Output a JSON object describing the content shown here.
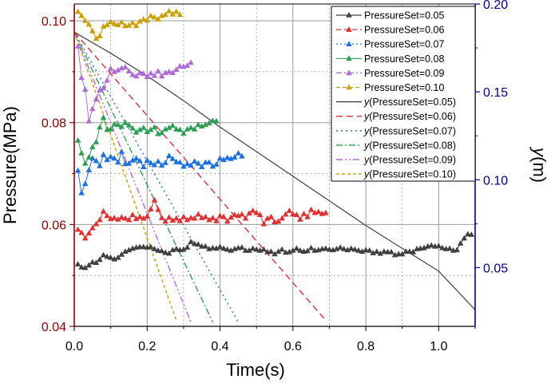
{
  "chart_data": {
    "type": "line",
    "xlabel": "Time(s)",
    "ylabel_left": "Pressure(MPa)",
    "ylabel_right_italic": "y",
    "ylabel_right_unit": "(m)",
    "xlim": [
      0,
      1.1
    ],
    "ylim_left": [
      0.04,
      0.1033
    ],
    "ylim_right": [
      0.0166,
      0.2
    ],
    "x_ticks": [
      "0.0",
      "0.2",
      "0.4",
      "0.6",
      "0.8",
      "1.0"
    ],
    "y_left_ticks": [
      "0.04",
      "0.06",
      "0.08",
      "0.10"
    ],
    "y_right_ticks": [
      "0.05",
      "0.10",
      "0.15",
      "0.20"
    ],
    "grid": true,
    "legend_position": "top-right",
    "colors": {
      "left_axis": "#8b0000",
      "right_axis": "#00008b",
      "grid": "#999999"
    },
    "pressure_series": [
      {
        "name": "PressureSet=0.05",
        "color": "#404040",
        "marker": "triangle",
        "x": [
          0.01,
          0.02,
          0.03,
          0.04,
          0.05,
          0.06,
          0.07,
          0.08,
          0.09,
          0.1,
          0.11,
          0.12,
          0.13,
          0.14,
          0.15,
          0.16,
          0.17,
          0.18,
          0.19,
          0.2,
          0.21,
          0.22,
          0.23,
          0.24,
          0.25,
          0.26,
          0.27,
          0.28,
          0.29,
          0.3,
          0.31,
          0.32,
          0.33,
          0.34,
          0.35,
          0.36,
          0.37,
          0.38,
          0.39,
          0.4,
          0.41,
          0.42,
          0.43,
          0.44,
          0.45,
          0.46,
          0.47,
          0.48,
          0.49,
          0.5,
          0.51,
          0.52,
          0.53,
          0.54,
          0.55,
          0.56,
          0.57,
          0.58,
          0.59,
          0.6,
          0.61,
          0.62,
          0.63,
          0.64,
          0.65,
          0.66,
          0.67,
          0.68,
          0.69,
          0.7,
          0.71,
          0.72,
          0.73,
          0.74,
          0.75,
          0.76,
          0.77,
          0.78,
          0.79,
          0.8,
          0.81,
          0.82,
          0.83,
          0.84,
          0.85,
          0.86,
          0.87,
          0.88,
          0.89,
          0.9,
          0.91,
          0.92,
          0.93,
          0.94,
          0.95,
          0.96,
          0.97,
          0.98,
          0.99,
          1.0,
          1.01,
          1.02,
          1.03,
          1.04,
          1.05,
          1.06,
          1.07,
          1.08,
          1.09
        ],
        "y": [
          0.0522,
          0.0516,
          0.0515,
          0.052,
          0.0526,
          0.0525,
          0.0531,
          0.054,
          0.0537,
          0.0535,
          0.0532,
          0.0535,
          0.0541,
          0.0547,
          0.055,
          0.0553,
          0.0555,
          0.0556,
          0.0556,
          0.0555,
          0.0556,
          0.0552,
          0.0549,
          0.0548,
          0.0545,
          0.0543,
          0.055,
          0.0552,
          0.055,
          0.0551,
          0.0555,
          0.0566,
          0.0562,
          0.0561,
          0.0557,
          0.0557,
          0.0552,
          0.0554,
          0.0553,
          0.0556,
          0.0553,
          0.0551,
          0.0549,
          0.0552,
          0.0554,
          0.0555,
          0.0549,
          0.0549,
          0.0553,
          0.0551,
          0.0549,
          0.0551,
          0.0546,
          0.0547,
          0.0542,
          0.0547,
          0.0551,
          0.0545,
          0.0546,
          0.0549,
          0.0553,
          0.0549,
          0.0547,
          0.0548,
          0.0554,
          0.0549,
          0.055,
          0.0552,
          0.0553,
          0.0551,
          0.055,
          0.0552,
          0.0555,
          0.0552,
          0.055,
          0.0553,
          0.0551,
          0.0549,
          0.0547,
          0.055,
          0.0549,
          0.0544,
          0.0547,
          0.0543,
          0.0547,
          0.0546,
          0.0546,
          0.054,
          0.0542,
          0.0542,
          0.0547,
          0.0547,
          0.0546,
          0.0552,
          0.0553,
          0.0554,
          0.0557,
          0.0559,
          0.0557,
          0.0558,
          0.0554,
          0.0552,
          0.0553,
          0.0549,
          0.055,
          0.0563,
          0.0573,
          0.0581,
          0.058
        ]
      },
      {
        "name": "PressureSet=0.06",
        "color": "#e03030",
        "marker": "triangle",
        "x": [
          0.01,
          0.02,
          0.03,
          0.04,
          0.05,
          0.06,
          0.07,
          0.08,
          0.09,
          0.1,
          0.11,
          0.12,
          0.13,
          0.14,
          0.15,
          0.16,
          0.17,
          0.18,
          0.19,
          0.2,
          0.21,
          0.22,
          0.23,
          0.24,
          0.25,
          0.26,
          0.27,
          0.28,
          0.29,
          0.3,
          0.31,
          0.32,
          0.33,
          0.34,
          0.35,
          0.36,
          0.37,
          0.38,
          0.39,
          0.4,
          0.41,
          0.42,
          0.43,
          0.44,
          0.45,
          0.46,
          0.47,
          0.48,
          0.49,
          0.5,
          0.51,
          0.52,
          0.53,
          0.54,
          0.55,
          0.56,
          0.57,
          0.58,
          0.59,
          0.6,
          0.61,
          0.62,
          0.63,
          0.64,
          0.65,
          0.66,
          0.67,
          0.68,
          0.69
        ],
        "y": [
          0.059,
          0.0584,
          0.0573,
          0.0583,
          0.0593,
          0.0601,
          0.0609,
          0.0626,
          0.0617,
          0.0611,
          0.0613,
          0.061,
          0.0614,
          0.0612,
          0.0609,
          0.0619,
          0.0611,
          0.0615,
          0.0612,
          0.0616,
          0.063,
          0.0648,
          0.0629,
          0.0613,
          0.0606,
          0.0614,
          0.0608,
          0.0612,
          0.0607,
          0.0615,
          0.0609,
          0.0613,
          0.0612,
          0.062,
          0.0613,
          0.0615,
          0.0609,
          0.0613,
          0.0607,
          0.0617,
          0.0615,
          0.0606,
          0.0614,
          0.0619,
          0.0617,
          0.062,
          0.0612,
          0.0622,
          0.0627,
          0.0623,
          0.0619,
          0.0601,
          0.0612,
          0.0615,
          0.0605,
          0.0606,
          0.0612,
          0.062,
          0.0627,
          0.062,
          0.0619,
          0.061,
          0.0621,
          0.0615,
          0.0629,
          0.0623,
          0.0625,
          0.0621,
          0.0623
        ]
      },
      {
        "name": "PressureSet=0.07",
        "color": "#1e6fe0",
        "marker": "triangle",
        "x": [
          0.01,
          0.02,
          0.03,
          0.04,
          0.05,
          0.06,
          0.07,
          0.08,
          0.09,
          0.1,
          0.11,
          0.12,
          0.13,
          0.14,
          0.15,
          0.16,
          0.17,
          0.18,
          0.19,
          0.2,
          0.21,
          0.22,
          0.23,
          0.24,
          0.25,
          0.26,
          0.27,
          0.28,
          0.29,
          0.3,
          0.31,
          0.32,
          0.33,
          0.34,
          0.35,
          0.36,
          0.37,
          0.38,
          0.39,
          0.4,
          0.41,
          0.42,
          0.43,
          0.44,
          0.45,
          0.46
        ],
        "y": [
          0.0706,
          0.0662,
          0.068,
          0.0707,
          0.073,
          0.0725,
          0.0715,
          0.0737,
          0.0727,
          0.0733,
          0.073,
          0.0722,
          0.0743,
          0.0719,
          0.072,
          0.0726,
          0.073,
          0.0725,
          0.0713,
          0.0726,
          0.0721,
          0.0717,
          0.0724,
          0.0716,
          0.0721,
          0.0735,
          0.0729,
          0.0723,
          0.0722,
          0.0714,
          0.0719,
          0.0716,
          0.0724,
          0.072,
          0.0713,
          0.0722,
          0.0722,
          0.0714,
          0.0718,
          0.073,
          0.0727,
          0.0731,
          0.0729,
          0.0732,
          0.074,
          0.0734
        ]
      },
      {
        "name": "PressureSet=0.08",
        "color": "#2e9e55",
        "marker": "triangle",
        "x": [
          0.01,
          0.02,
          0.03,
          0.04,
          0.05,
          0.06,
          0.07,
          0.08,
          0.09,
          0.1,
          0.11,
          0.12,
          0.13,
          0.14,
          0.15,
          0.16,
          0.17,
          0.18,
          0.19,
          0.2,
          0.21,
          0.22,
          0.23,
          0.24,
          0.25,
          0.26,
          0.27,
          0.28,
          0.29,
          0.3,
          0.31,
          0.32,
          0.33,
          0.34,
          0.35,
          0.36,
          0.37,
          0.38,
          0.39
        ],
        "y": [
          0.0765,
          0.074,
          0.072,
          0.0732,
          0.0752,
          0.0762,
          0.0791,
          0.081,
          0.0786,
          0.0787,
          0.0797,
          0.0796,
          0.0792,
          0.08,
          0.0795,
          0.0789,
          0.0781,
          0.0786,
          0.079,
          0.0782,
          0.0786,
          0.0791,
          0.0778,
          0.078,
          0.0787,
          0.079,
          0.0794,
          0.0787,
          0.0786,
          0.0779,
          0.0787,
          0.079,
          0.0787,
          0.0796,
          0.0793,
          0.0796,
          0.0799,
          0.0804,
          0.0803
        ]
      },
      {
        "name": "PressureSet=0.09",
        "color": "#b06ad8",
        "marker": "triangle",
        "x": [
          0.01,
          0.02,
          0.03,
          0.04,
          0.05,
          0.06,
          0.07,
          0.08,
          0.09,
          0.1,
          0.11,
          0.12,
          0.13,
          0.14,
          0.15,
          0.16,
          0.17,
          0.18,
          0.19,
          0.2,
          0.21,
          0.22,
          0.23,
          0.24,
          0.25,
          0.26,
          0.27,
          0.28,
          0.29,
          0.3,
          0.31,
          0.32
        ],
        "y": [
          0.095,
          0.0888,
          0.0865,
          0.0803,
          0.0827,
          0.0846,
          0.0864,
          0.0868,
          0.0883,
          0.0906,
          0.09,
          0.0903,
          0.0907,
          0.0909,
          0.0901,
          0.0894,
          0.0891,
          0.0898,
          0.0896,
          0.089,
          0.0897,
          0.0892,
          0.0901,
          0.0891,
          0.0898,
          0.09,
          0.0898,
          0.0904,
          0.0911,
          0.091,
          0.0912,
          0.0918
        ]
      },
      {
        "name": "PressureSet=0.10",
        "color": "#c8a000",
        "marker": "triangle",
        "x": [
          0.01,
          0.02,
          0.03,
          0.04,
          0.05,
          0.06,
          0.07,
          0.08,
          0.09,
          0.1,
          0.11,
          0.12,
          0.13,
          0.14,
          0.15,
          0.16,
          0.17,
          0.18,
          0.19,
          0.2,
          0.21,
          0.22,
          0.23,
          0.24,
          0.25,
          0.26,
          0.27,
          0.28,
          0.29
        ],
        "y": [
          0.1018,
          0.101,
          0.1,
          0.0993,
          0.098,
          0.0965,
          0.097,
          0.0989,
          0.0992,
          0.0998,
          0.0994,
          0.0992,
          0.0997,
          0.099,
          0.0991,
          0.0996,
          0.099,
          0.0999,
          0.1003,
          0.1001,
          0.101,
          0.1007,
          0.1003,
          0.101,
          0.1012,
          0.1019,
          0.1013,
          0.1018,
          0.1012
        ]
      }
    ],
    "y_series": [
      {
        "name": "y(PressureSet=0.05)",
        "label_prefix": "y",
        "label_suffix": "(PressureSet=0.05)",
        "color": "#404040",
        "dash": "solid",
        "x": [
          0.0,
          0.1,
          0.2,
          0.3,
          0.4,
          0.5,
          0.6,
          0.7,
          0.8,
          0.9,
          1.0,
          1.1
        ],
        "y": [
          0.184,
          0.172,
          0.159,
          0.145,
          0.13,
          0.116,
          0.102,
          0.088,
          0.074,
          0.061,
          0.048,
          0.026
        ]
      },
      {
        "name": "y(PressureSet=0.06)",
        "label_prefix": "y",
        "label_suffix": "(PressureSet=0.06)",
        "color": "#e03030",
        "dash": "dashed",
        "x": [
          0.0,
          0.69
        ],
        "y": [
          0.184,
          0.02
        ]
      },
      {
        "name": "y(PressureSet=0.07)",
        "label_prefix": "y",
        "label_suffix": "(PressureSet=0.07)",
        "color": "#1e6fe0",
        "dash": "dotted",
        "x": [
          0.0,
          0.45
        ],
        "y": [
          0.184,
          0.019
        ]
      },
      {
        "name": "y(PressureSet=0.08)",
        "label_prefix": "y",
        "label_suffix": "(PressureSet=0.08)",
        "color": "#2e9e55",
        "dash": "dashdot",
        "x": [
          0.0,
          0.38
        ],
        "y": [
          0.184,
          0.019
        ]
      },
      {
        "name": "y(PressureSet=0.09)",
        "label_prefix": "y",
        "label_suffix": "(PressureSet=0.09)",
        "color": "#b06ad8",
        "dash": "dashdotdot",
        "x": [
          0.0,
          0.32
        ],
        "y": [
          0.184,
          0.019
        ]
      },
      {
        "name": "y(PressureSet=0.10)",
        "label_prefix": "y",
        "label_suffix": "(PressureSet=0.10)",
        "color": "#c8a000",
        "dash": "shortdash",
        "x": [
          0.0,
          0.28
        ],
        "y": [
          0.184,
          0.02
        ]
      }
    ]
  }
}
